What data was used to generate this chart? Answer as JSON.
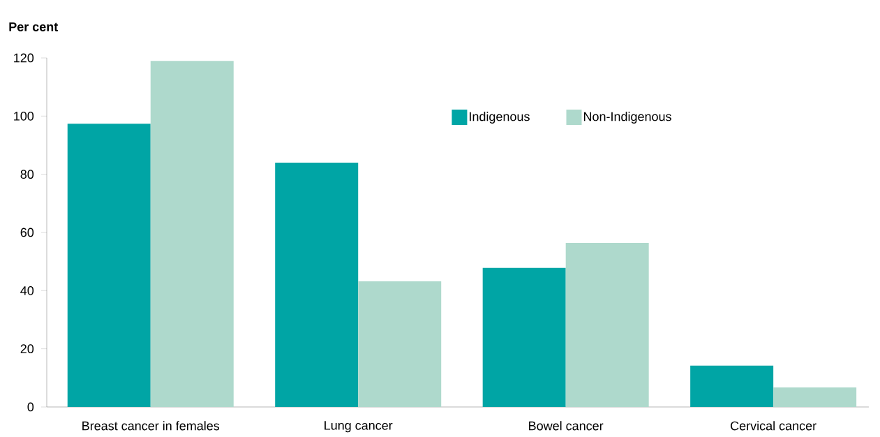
{
  "chart_data": {
    "type": "bar",
    "ylabel": "Per cent",
    "categories": [
      "Breast cancer in females",
      "Lung cancer",
      "Bowel cancer",
      "Cervical cancer"
    ],
    "series": [
      {
        "name": "Indigenous",
        "color": "#00a5a5",
        "values": [
          97.4,
          84,
          47.8,
          14.2
        ]
      },
      {
        "name": "Non-Indigenous",
        "color": "#aed9cc",
        "values": [
          119,
          43.2,
          56.4,
          6.7
        ]
      }
    ],
    "ylim": [
      0,
      120
    ],
    "yticks": [
      0,
      20,
      40,
      60,
      80,
      100,
      120
    ],
    "legend": "top right"
  }
}
